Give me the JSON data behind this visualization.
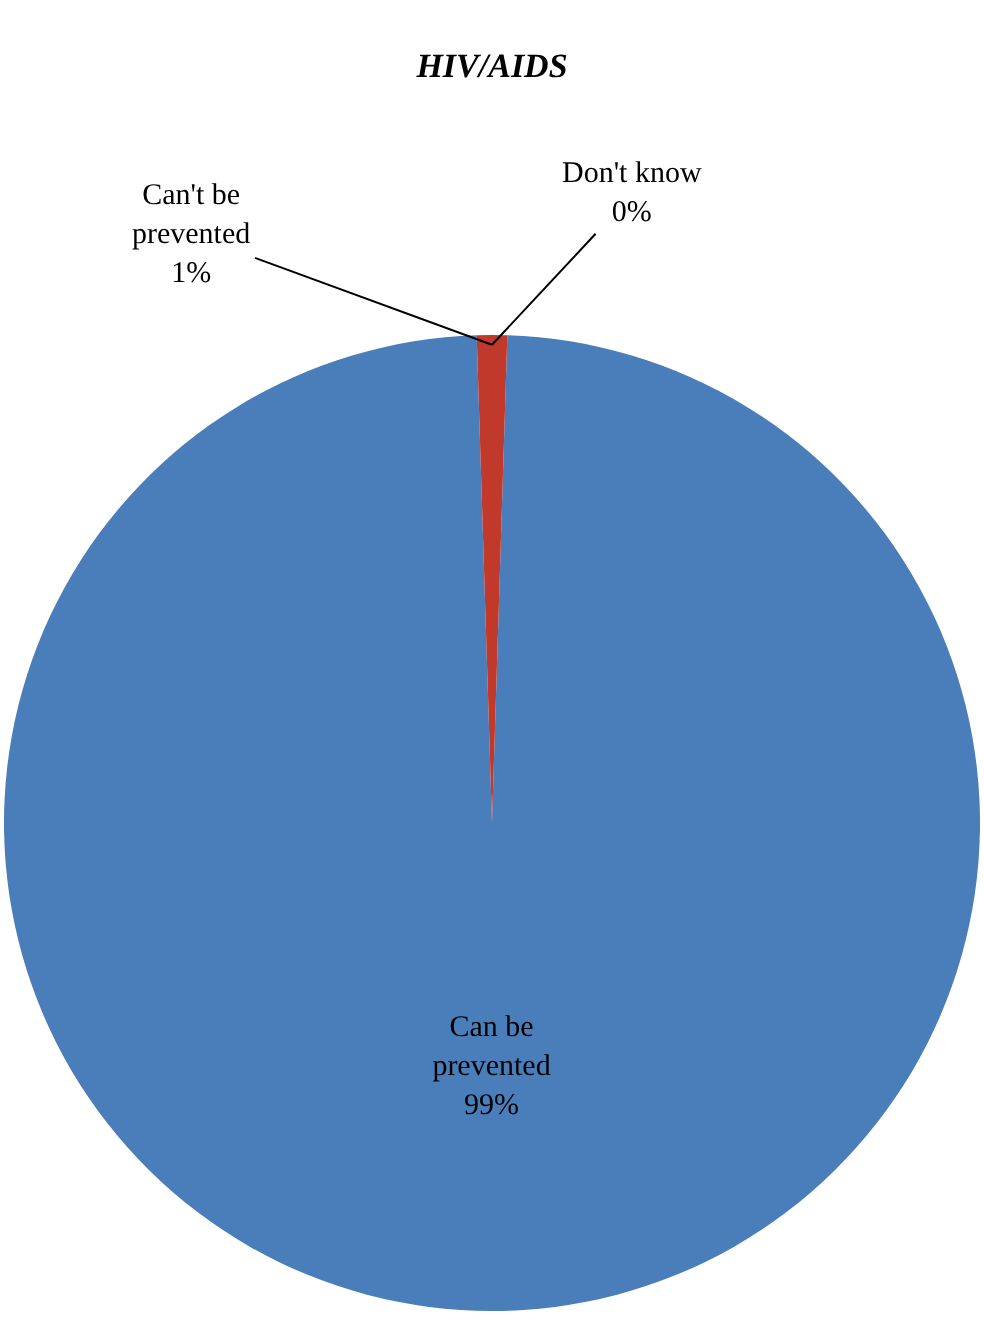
{
  "chart_data": {
    "type": "pie",
    "title": "HIV/AIDS",
    "categories": [
      "Can be prevented",
      "Can't be prevented",
      "Don't know"
    ],
    "values": [
      99,
      1,
      0
    ],
    "value_labels": [
      "99%",
      "1%",
      "0%"
    ],
    "colors": [
      "#4a7ebb",
      "#c0392b",
      "#9bbb59"
    ],
    "legend": false
  }
}
